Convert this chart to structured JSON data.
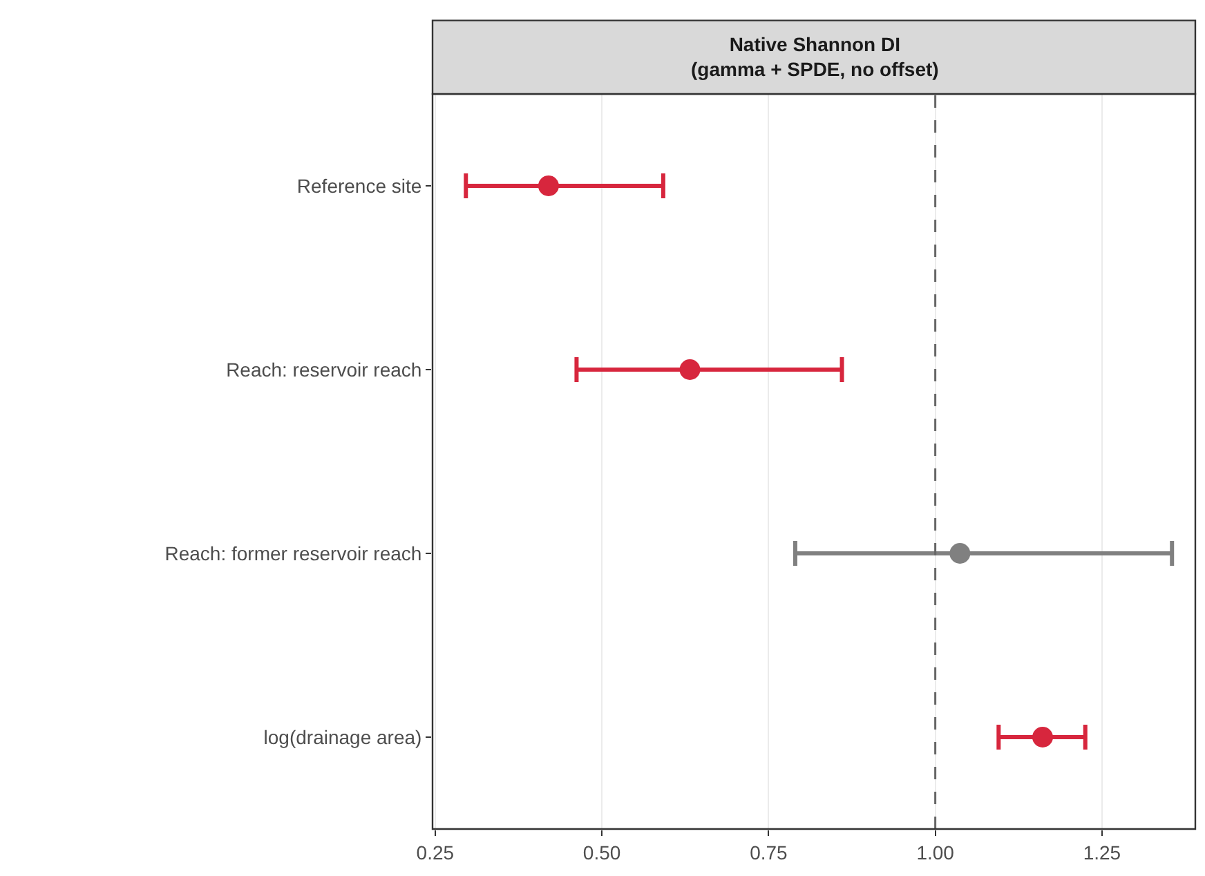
{
  "chart_data": {
    "type": "scatter",
    "orientation": "horizontal",
    "title": "Native Shannon DI\n(gamma + SPDE, no offset)",
    "categories": [
      "Reference site",
      "Reach: reservoir reach",
      "Reach: former reservoir reach",
      "log(drainage area)"
    ],
    "values": [
      0.42,
      0.632,
      1.037,
      1.161
    ],
    "errors": [
      [
        0.296,
        0.592
      ],
      [
        0.462,
        0.86
      ],
      [
        0.79,
        1.355
      ],
      [
        1.095,
        1.225
      ]
    ],
    "colors": [
      "#d7263d",
      "#d7263d",
      "#808080",
      "#d7263d"
    ],
    "xlim": [
      0.246,
      1.39
    ],
    "xticks": [
      {
        "value": 0.25,
        "label": "0.25"
      },
      {
        "value": 0.5,
        "label": "0.50"
      },
      {
        "value": 0.75,
        "label": "0.75"
      },
      {
        "value": 1.0,
        "label": "1.00"
      },
      {
        "value": 1.25,
        "label": "1.25"
      }
    ],
    "ref_lines": [
      {
        "axis": "x",
        "value": 1.0,
        "line_style": "dashed",
        "color": "#666666"
      }
    ],
    "grid": "x",
    "marker": "circle"
  }
}
